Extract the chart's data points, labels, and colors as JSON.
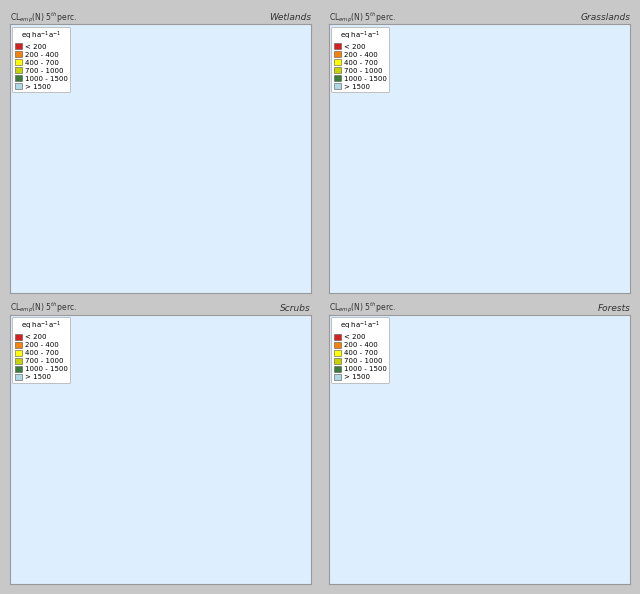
{
  "panels": [
    {
      "title": "Wetlands",
      "col": "CL$_{emp}$(N) 5$^{th}$perc."
    },
    {
      "title": "Grasslands",
      "col": "CL$_{emp}$(N) 5$^{th}$perc."
    },
    {
      "title": "Scrubs",
      "col": "CL$_{emp}$(N) 5$^{th}$perc."
    },
    {
      "title": "Forests",
      "col": "CL$_{emp}$(N) 5$^{th}$perc."
    }
  ],
  "legend_title": "eq ha$^{-1}$a$^{-1}$",
  "legend_labels": [
    "< 200",
    "200 - 400",
    "400 - 700",
    "700 - 1000",
    "1000 - 1500",
    "> 1500"
  ],
  "legend_colors": [
    "#d42020",
    "#f5820d",
    "#ffff00",
    "#c8d400",
    "#3a7d3a",
    "#add8e6"
  ],
  "bg_color": "#ffffff",
  "sea_color": "#ddeeff",
  "land_color": "#f8f8f8",
  "border_color": "#aaaaaa",
  "outer_bg": "#c8c8c8",
  "subtitle_fs": 5.5,
  "title_fs": 6.5,
  "legend_fs": 5.0,
  "extent": [
    -11,
    40,
    34,
    71
  ]
}
